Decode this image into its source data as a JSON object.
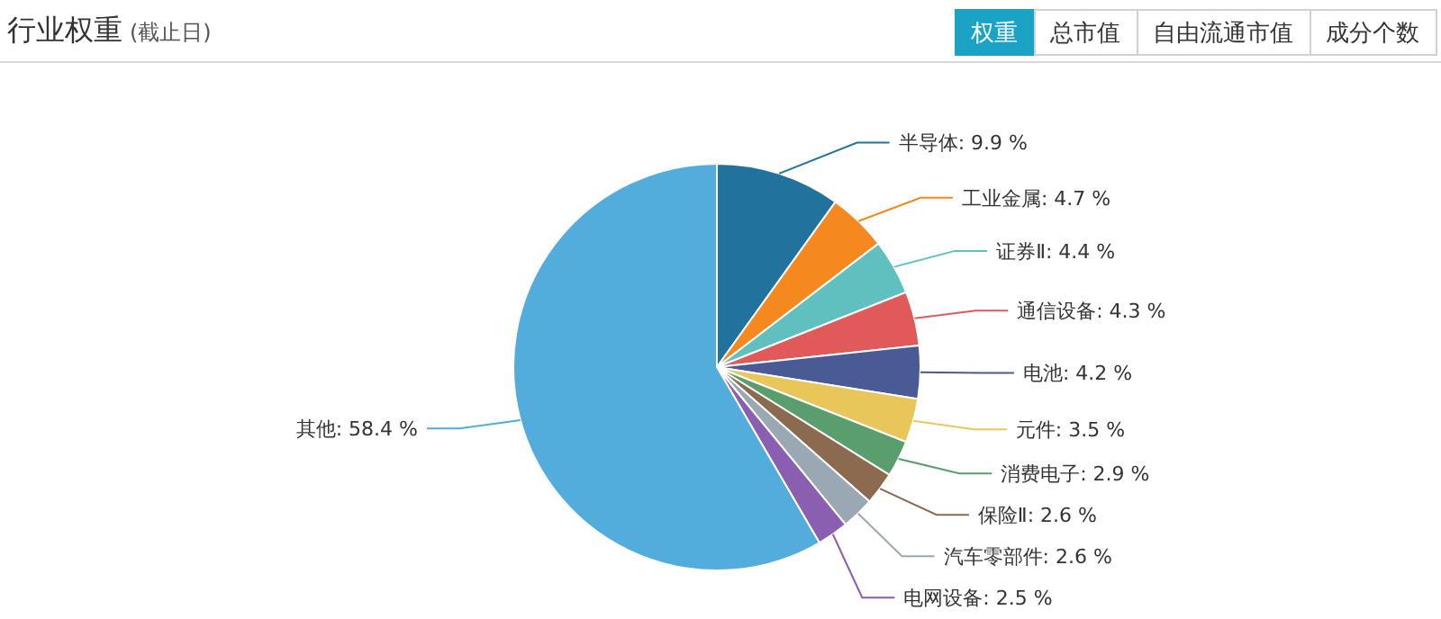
{
  "chart_data": {
    "type": "pie",
    "title": "行业权重",
    "subtitle": "(截止日)",
    "annotations": [
      "权重",
      "总市值",
      "自由流通市值",
      "成分个数"
    ],
    "categories": [
      "半导体",
      "工业金属",
      "证券Ⅱ",
      "通信设备",
      "电池",
      "元件",
      "消费电子",
      "保险Ⅱ",
      "汽车零部件",
      "电网设备",
      "其他"
    ],
    "values": [
      9.9,
      4.7,
      4.4,
      4.3,
      4.2,
      3.5,
      2.9,
      2.6,
      2.6,
      2.5,
      58.4
    ],
    "value_labels": [
      "9.9 %",
      "4.7 %",
      "4.4 %",
      "4.3 %",
      "4.2 %",
      "3.5 %",
      "2.9 %",
      "2.6 %",
      "2.6 %",
      "2.5 %",
      "58.4 %"
    ],
    "colors": [
      "#21739e",
      "#f5891f",
      "#5fc0bf",
      "#e05a5a",
      "#4a5a94",
      "#e8c65a",
      "#5a9e6e",
      "#8b6a4f",
      "#9aa8b4",
      "#8a5eb0",
      "#52acdc"
    ]
  }
}
